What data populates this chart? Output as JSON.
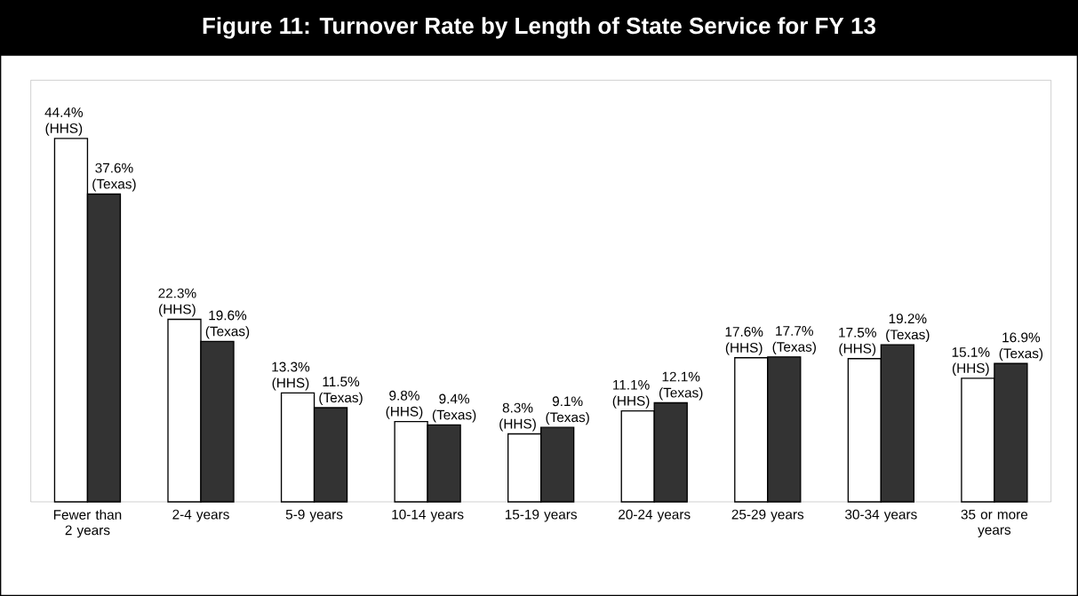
{
  "chart_data": {
    "type": "bar",
    "title": "Figure 11: Turnover Rate by Length of State Service for FY 13",
    "categories": [
      "Fewer than 2 years",
      "2-4 years",
      "5-9 years",
      "10-14 years",
      "15-19 years",
      "20-24 years",
      "25-29 years",
      "30-34 years",
      "35 or more years"
    ],
    "series": [
      {
        "name": "(HHS)",
        "color": "#ffffff",
        "values": [
          44.4,
          22.3,
          13.3,
          9.8,
          8.3,
          11.1,
          17.6,
          17.5,
          15.1
        ],
        "value_labels": [
          "44.4%",
          "22.3%",
          "13.3%",
          "9.8%",
          "8.3%",
          "11.1%",
          "17.6%",
          "17.5%",
          "15.1%"
        ]
      },
      {
        "name": "(Texas)",
        "color": "#333333",
        "values": [
          37.6,
          19.6,
          11.5,
          9.4,
          9.1,
          12.1,
          17.7,
          19.2,
          16.9
        ],
        "value_labels": [
          "37.6%",
          "19.6%",
          "11.5%",
          "9.4%",
          "9.1%",
          "12.1%",
          "17.7%",
          "19.2%",
          "16.9%"
        ]
      }
    ]
  }
}
